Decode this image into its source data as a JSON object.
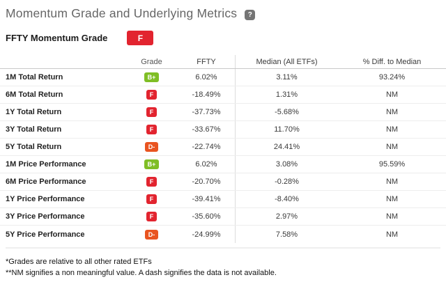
{
  "header": {
    "title": "Momentum Grade and Underlying Metrics",
    "help_icon": "?",
    "subtitle": "FFTY Momentum Grade",
    "subtitle_grade": "F"
  },
  "colors": {
    "grade_b_plus": "#7fbe25",
    "grade_f": "#e2242f",
    "grade_d_minus": "#e95420",
    "accent_red": "#e2242f",
    "title_gray": "#666666"
  },
  "table": {
    "columns": [
      "",
      "Grade",
      "FFTY",
      "Median (All ETFs)",
      "% Diff. to Median"
    ],
    "rows": [
      {
        "label": "1M Total Return",
        "grade": "B+",
        "grade_color": "#7fbe25",
        "ffty": "6.02%",
        "median": "3.11%",
        "diff": "93.24%"
      },
      {
        "label": "6M Total Return",
        "grade": "F",
        "grade_color": "#e2242f",
        "ffty": "-18.49%",
        "median": "1.31%",
        "diff": "NM"
      },
      {
        "label": "1Y Total Return",
        "grade": "F",
        "grade_color": "#e2242f",
        "ffty": "-37.73%",
        "median": "-5.68%",
        "diff": "NM"
      },
      {
        "label": "3Y Total Return",
        "grade": "F",
        "grade_color": "#e2242f",
        "ffty": "-33.67%",
        "median": "11.70%",
        "diff": "NM"
      },
      {
        "label": "5Y Total Return",
        "grade": "D-",
        "grade_color": "#e95420",
        "ffty": "-22.74%",
        "median": "24.41%",
        "diff": "NM"
      },
      {
        "label": "1M Price Performance",
        "grade": "B+",
        "grade_color": "#7fbe25",
        "ffty": "6.02%",
        "median": "3.08%",
        "diff": "95.59%"
      },
      {
        "label": "6M Price Performance",
        "grade": "F",
        "grade_color": "#e2242f",
        "ffty": "-20.70%",
        "median": "-0.28%",
        "diff": "NM"
      },
      {
        "label": "1Y Price Performance",
        "grade": "F",
        "grade_color": "#e2242f",
        "ffty": "-39.41%",
        "median": "-8.40%",
        "diff": "NM"
      },
      {
        "label": "3Y Price Performance",
        "grade": "F",
        "grade_color": "#e2242f",
        "ffty": "-35.60%",
        "median": "2.97%",
        "diff": "NM"
      },
      {
        "label": "5Y Price Performance",
        "grade": "D-",
        "grade_color": "#e95420",
        "ffty": "-24.99%",
        "median": "7.58%",
        "diff": "NM"
      }
    ]
  },
  "footnotes": {
    "line1": "*Grades are relative to all other rated ETFs",
    "line2": "**NM signifies a non meaningful value. A dash signifies the data is not available."
  }
}
